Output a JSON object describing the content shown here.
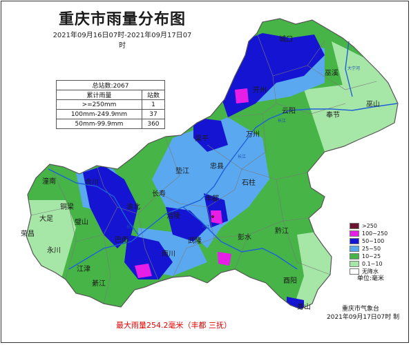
{
  "title": "重庆市雨量分布图",
  "subtitle": "2021年09月16日07时-2021年09月17日07时",
  "stats": {
    "total": "总站数:2067",
    "col_rain": "累计雨量",
    "col_count": "站数",
    "rows": [
      {
        "range": ">=250mm",
        "count": "1"
      },
      {
        "range": "100mm-249.9mm",
        "count": "37"
      },
      {
        "range": "50mm-99.9mm",
        "count": "360"
      }
    ]
  },
  "map": {
    "districts": [
      "城口",
      "巫溪",
      "巫山",
      "奉节",
      "云阳",
      "开州",
      "万州",
      "梁平",
      "忠县",
      "垫江",
      "石柱",
      "长寿",
      "涪陵",
      "丰都",
      "彭水",
      "黔江",
      "酉阳",
      "秀山",
      "武隆",
      "南川",
      "綦江",
      "江津",
      "永川",
      "荣昌",
      "大足",
      "潼南",
      "铜梁",
      "合川",
      "璧山",
      "巴南",
      "渝北"
    ],
    "river_labels": [
      "大宁河",
      "长江",
      "长江",
      "乌江",
      "长江"
    ],
    "colors": {
      "boundary": "#7a7a7a",
      "river": "#1f5fd8",
      "province_outline": "#555555"
    }
  },
  "legend": {
    "items": [
      {
        "label": ">250",
        "color": "#6b1432"
      },
      {
        "label": "100~250",
        "color": "#e61ee6"
      },
      {
        "label": "50~100",
        "color": "#1414d2"
      },
      {
        "label": "25~50",
        "color": "#5aa8f0"
      },
      {
        "label": "10~25",
        "color": "#46b446"
      },
      {
        "label": "0.1~10",
        "color": "#a6e6a6"
      },
      {
        "label": "无降水",
        "color": "#ffffff"
      }
    ],
    "unit": "单位:毫米"
  },
  "credits": {
    "agency": "重庆市气象台",
    "made": "2021年09月17日07时 制"
  },
  "max_rain": "最大雨量254.2毫米（丰都 三抚）"
}
